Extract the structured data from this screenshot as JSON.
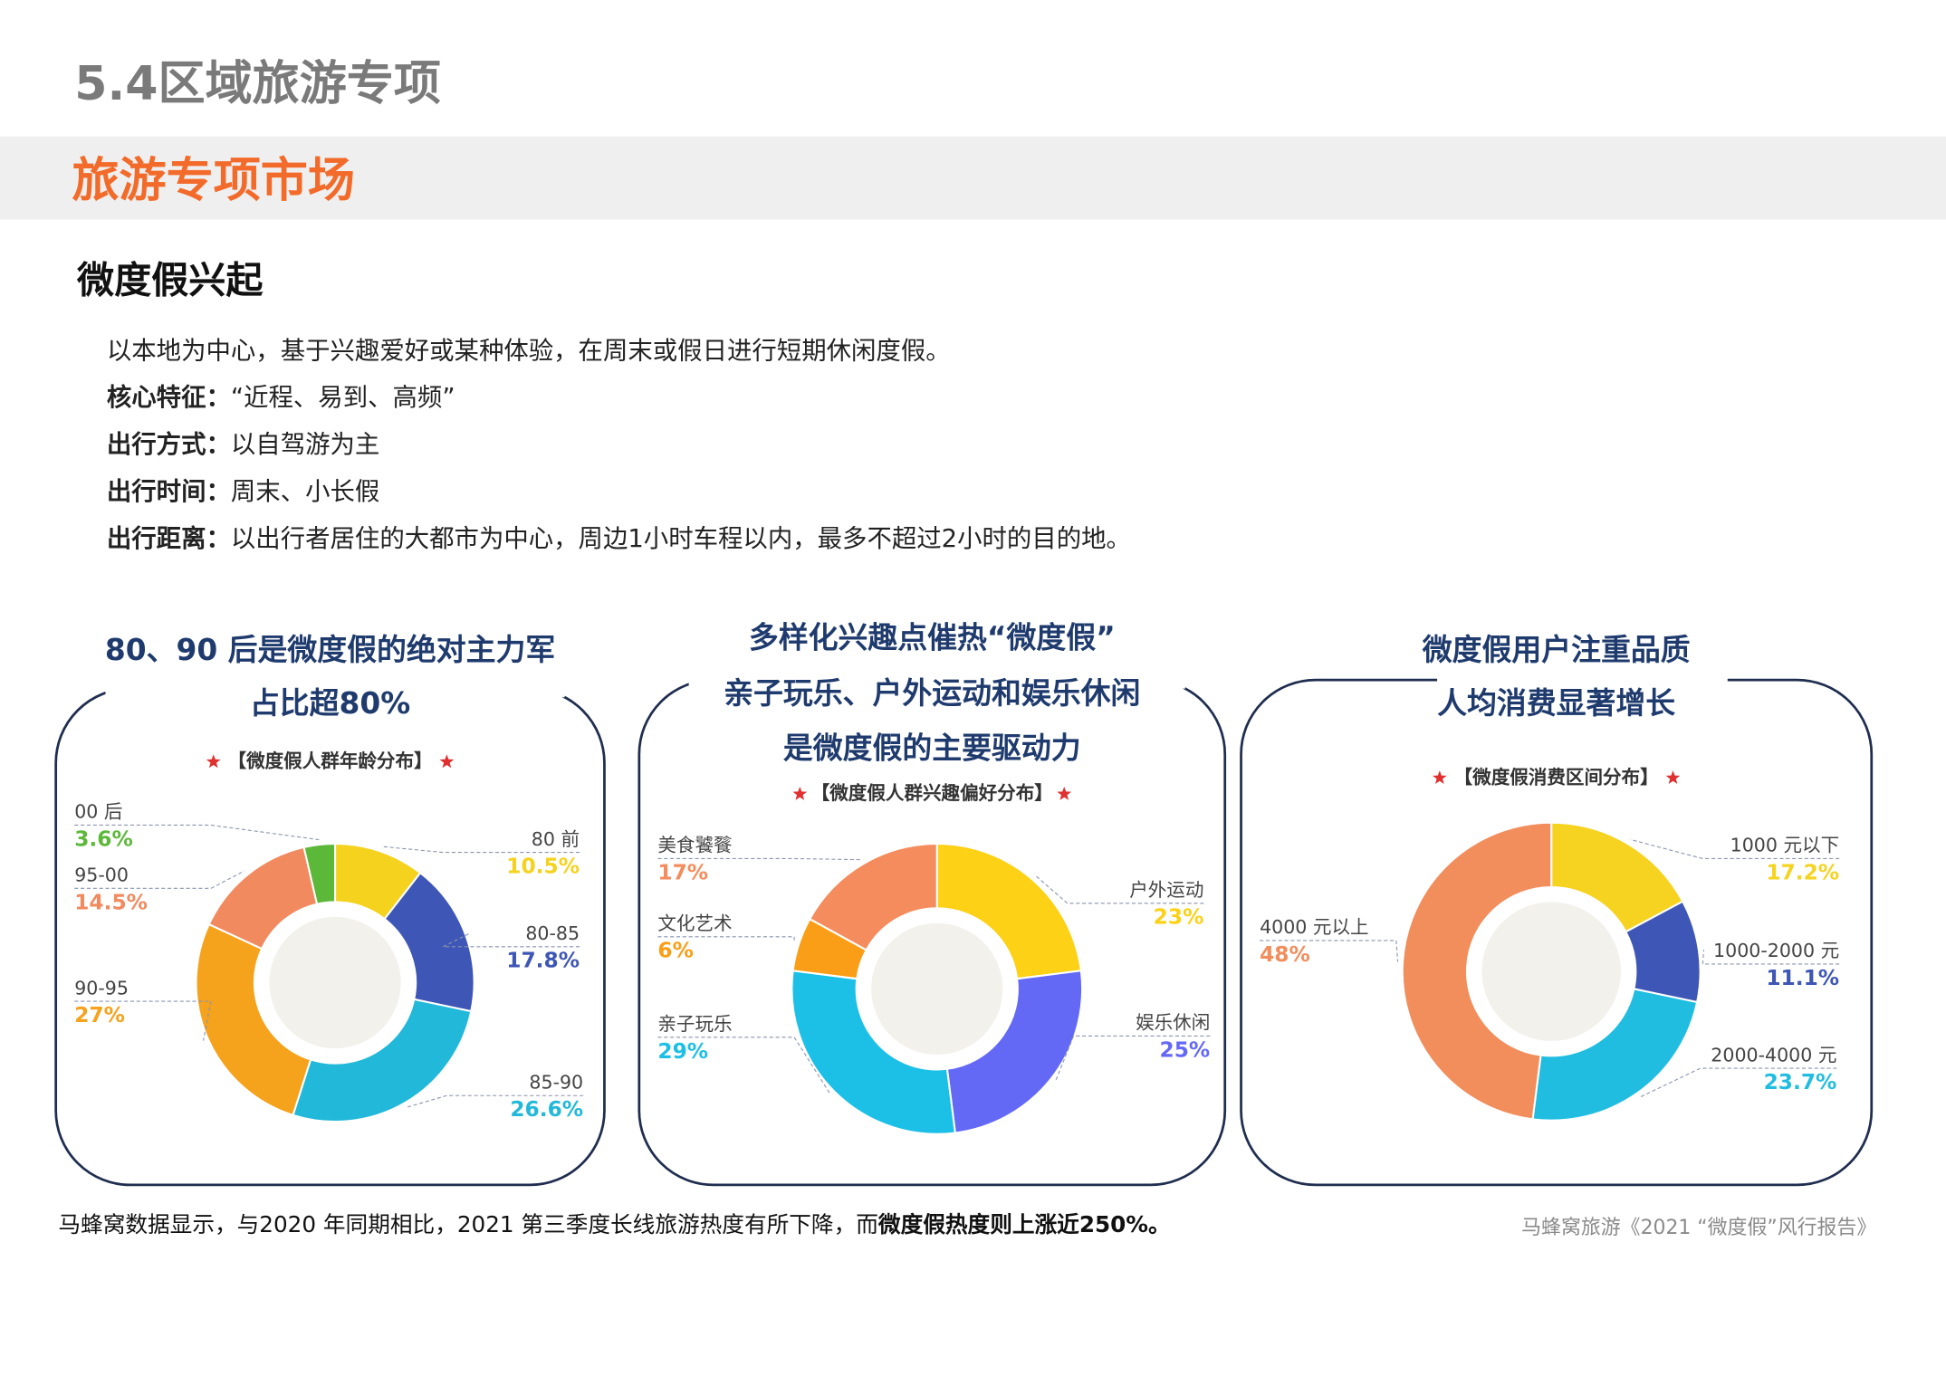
{
  "header": {
    "title": "5.4区域旅游专项",
    "section": "旅游专项市场"
  },
  "topic": {
    "title": "微度假兴起",
    "intro": "以本地为中心，基于兴趣爱好或某种体验，在周末或假日进行短期休闲度假。",
    "lines": [
      {
        "label": "核心特征：",
        "text": "“近程、易到、高频”"
      },
      {
        "label": "出行方式：",
        "text": "以自驾游为主"
      },
      {
        "label": "出行时间：",
        "text": "周末、小长假"
      },
      {
        "label": "出行距离：",
        "text": "以出行者居住的大都市为中心，周边1小时车程以内，最多不超过2小时的目的地。"
      }
    ]
  },
  "chart_data": [
    {
      "type": "pie",
      "title_lines": [
        "80、90 后是微度假的绝对主力军",
        "占比超80%"
      ],
      "subtitle": "【微度假人群年龄分布】",
      "categories": [
        "80 前",
        "80-85",
        "85-90",
        "90-95",
        "95-00",
        "00 后"
      ],
      "values": [
        10.5,
        17.8,
        26.6,
        27,
        14.5,
        3.6
      ],
      "value_labels": [
        "10.5%",
        "17.8%",
        "26.6%",
        "27%",
        "14.5%",
        "3.6%"
      ],
      "colors": [
        "#f5d21d",
        "#3e56b5",
        "#22b8d9",
        "#f5a21c",
        "#f18a5f",
        "#5cb838"
      ]
    },
    {
      "type": "pie",
      "title_lines": [
        "多样化兴趣点催热“微度假”",
        "亲子玩乐、户外运动和娱乐休闲",
        "是微度假的主要驱动力"
      ],
      "subtitle": "【微度假人群兴趣偏好分布】",
      "categories": [
        "户外运动",
        "娱乐休闲",
        "亲子玩乐",
        "文化艺术",
        "美食饕餮"
      ],
      "values": [
        23,
        25,
        29,
        6,
        17
      ],
      "value_labels": [
        "23%",
        "25%",
        "29%",
        "6%",
        "17%"
      ],
      "colors": [
        "#fcd116",
        "#6369f5",
        "#1cc0e6",
        "#fb9e17",
        "#f58c5d"
      ]
    },
    {
      "type": "pie",
      "title_lines": [
        "微度假用户注重品质",
        "人均消费显著增长"
      ],
      "subtitle": "【微度假消费区间分布】",
      "categories": [
        "1000 元以下",
        "1000-2000 元",
        "2000-4000 元",
        "4000 元以上"
      ],
      "values": [
        17.2,
        11.1,
        23.7,
        48
      ],
      "value_labels": [
        "17.2%",
        "11.1%",
        "23.7%",
        "48%"
      ],
      "colors": [
        "#f5d320",
        "#3e56b5",
        "#21bde0",
        "#f28d5c"
      ]
    }
  ],
  "footer": {
    "note": "马蜂窝数据显示，与2020 年同期相比，2021 第三季度长线旅游热度有所下降，而",
    "note_bold": "微度假热度则上涨近250%。",
    "source": "马蜂窝旅游《2021 “微度假”风行报告》"
  }
}
